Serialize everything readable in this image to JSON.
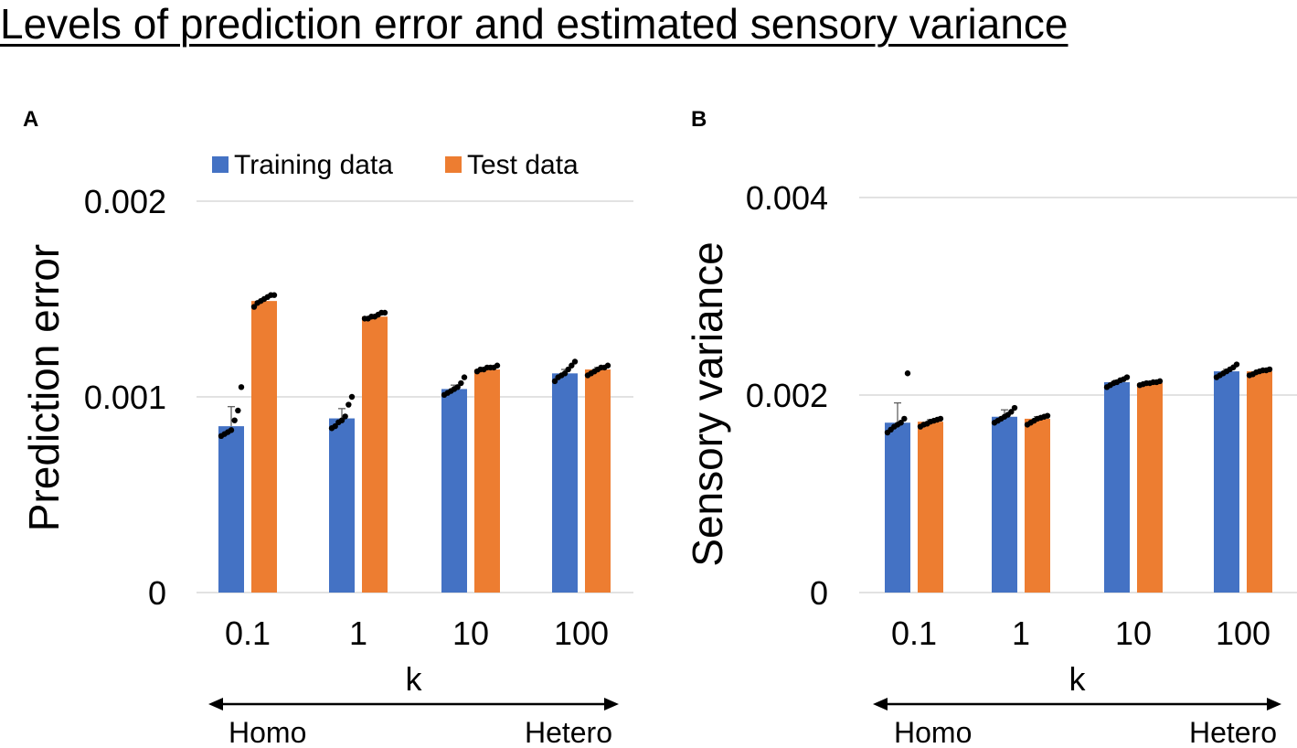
{
  "title": "Levels of prediction error and estimated sensory variance",
  "colors": {
    "training": "#4472c4",
    "test": "#ed7d31",
    "grid": "#d9d9d9",
    "dot": "#000000"
  },
  "legend": {
    "training_label": "Training data",
    "test_label": "Test data"
  },
  "chart_data": [
    {
      "panel": "A",
      "type": "bar",
      "title": "",
      "xlabel": "k",
      "ylabel": "Prediction error",
      "categories": [
        "0.1",
        "1",
        "10",
        "100"
      ],
      "ylim": [
        0,
        0.002
      ],
      "yticks": [
        "0",
        "0.001",
        "0.002"
      ],
      "series": [
        {
          "name": "Training data",
          "values": [
            0.00085,
            0.00089,
            0.00104,
            0.00112
          ],
          "errors": [
            0.0001,
            5e-05,
            2e-05,
            2e-05
          ],
          "points": [
            [
              0.0008,
              0.00081,
              0.00082,
              0.00083,
              0.00088,
              0.00093,
              0.00105
            ],
            [
              0.00084,
              0.00085,
              0.00087,
              0.00088,
              0.0009,
              0.00096,
              0.001
            ],
            [
              0.00101,
              0.00102,
              0.00103,
              0.00104,
              0.00105,
              0.00107,
              0.0011
            ],
            [
              0.00108,
              0.0011,
              0.00111,
              0.00112,
              0.00114,
              0.00116,
              0.00118
            ]
          ]
        },
        {
          "name": "Test data",
          "values": [
            0.00149,
            0.00141,
            0.00114,
            0.00114
          ],
          "errors": [
            1e-05,
            1e-05,
            1e-05,
            1e-05
          ],
          "points": [
            [
              0.00146,
              0.00148,
              0.00149,
              0.0015,
              0.00151,
              0.00152,
              0.00152
            ],
            [
              0.0014,
              0.0014,
              0.00141,
              0.00141,
              0.00142,
              0.00143,
              0.00143
            ],
            [
              0.00113,
              0.00114,
              0.00114,
              0.00115,
              0.00115,
              0.00115,
              0.00116
            ],
            [
              0.00111,
              0.00112,
              0.00113,
              0.00114,
              0.00115,
              0.00115,
              0.00116
            ]
          ]
        }
      ],
      "arrow": {
        "left_label": "Homo",
        "right_label": "Hetero"
      }
    },
    {
      "panel": "B",
      "type": "bar",
      "title": "",
      "xlabel": "k",
      "ylabel": "Sensory variance",
      "categories": [
        "0.1",
        "1",
        "10",
        "100"
      ],
      "ylim": [
        0,
        0.004
      ],
      "yticks": [
        "0",
        "0.002",
        "0.004"
      ],
      "series": [
        {
          "name": "Training data",
          "values": [
            0.00172,
            0.00178,
            0.00213,
            0.00224
          ],
          "errors": [
            0.0002,
            7e-05,
            2e-05,
            2e-05
          ],
          "points": [
            [
              0.00162,
              0.00165,
              0.00168,
              0.0017,
              0.00172,
              0.00176,
              0.00222
            ],
            [
              0.00172,
              0.00174,
              0.00176,
              0.00178,
              0.0018,
              0.00183,
              0.00187
            ],
            [
              0.00208,
              0.0021,
              0.00212,
              0.00213,
              0.00215,
              0.00216,
              0.00218
            ],
            [
              0.00218,
              0.0022,
              0.00222,
              0.00224,
              0.00226,
              0.00228,
              0.00231
            ]
          ]
        },
        {
          "name": "Test data",
          "values": [
            0.00173,
            0.00176,
            0.00212,
            0.00224
          ],
          "errors": [
            2e-05,
            2e-05,
            1e-05,
            1e-05
          ],
          "points": [
            [
              0.00168,
              0.0017,
              0.00171,
              0.00173,
              0.00174,
              0.00175,
              0.00176
            ],
            [
              0.0017,
              0.00172,
              0.00174,
              0.00176,
              0.00177,
              0.00178,
              0.00179
            ],
            [
              0.0021,
              0.00211,
              0.00212,
              0.00212,
              0.00213,
              0.00213,
              0.00214
            ],
            [
              0.0022,
              0.00221,
              0.00223,
              0.00224,
              0.00225,
              0.00225,
              0.00226
            ]
          ]
        }
      ],
      "arrow": {
        "left_label": "Homo",
        "right_label": "Hetero"
      }
    }
  ]
}
